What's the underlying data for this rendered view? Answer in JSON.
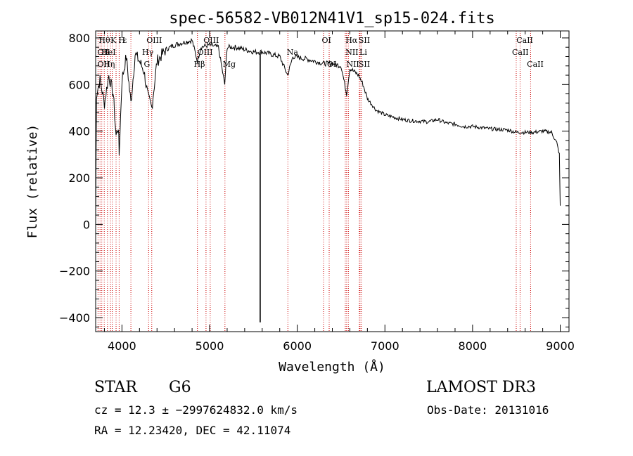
{
  "chart_data": {
    "type": "line",
    "title": "spec-56582-VB012N41V1_sp15-024.fits",
    "xlabel": "Wavelength (Å)",
    "ylabel": "Flux (relative)",
    "xlim": [
      3700,
      9100
    ],
    "ylim": [
      -460,
      830
    ],
    "x_ticks": [
      4000,
      5000,
      6000,
      7000,
      8000,
      9000
    ],
    "x_tick_labels": [
      "4000",
      "5000",
      "6000",
      "7000",
      "8000",
      "9000"
    ],
    "y_ticks": [
      -400,
      -200,
      0,
      200,
      400,
      600,
      800
    ],
    "y_tick_labels": [
      "−400",
      "−200",
      "0",
      "200",
      "400",
      "600",
      "800"
    ],
    "line_color": "#000000",
    "marker_color": "#cc0000",
    "continuum": [
      [
        3700,
        0
      ],
      [
        3710,
        560
      ],
      [
        3750,
        620
      ],
      [
        3800,
        520
      ],
      [
        3850,
        640
      ],
      [
        3900,
        560
      ],
      [
        3933,
        380
      ],
      [
        3960,
        420
      ],
      [
        3968,
        300
      ],
      [
        4000,
        620
      ],
      [
        4050,
        720
      ],
      [
        4102,
        520
      ],
      [
        4150,
        730
      ],
      [
        4200,
        700
      ],
      [
        4250,
        660
      ],
      [
        4300,
        540
      ],
      [
        4340,
        500
      ],
      [
        4400,
        700
      ],
      [
        4500,
        750
      ],
      [
        4600,
        770
      ],
      [
        4700,
        780
      ],
      [
        4800,
        790
      ],
      [
        4861,
        700
      ],
      [
        4900,
        760
      ],
      [
        5000,
        770
      ],
      [
        5100,
        760
      ],
      [
        5172,
        600
      ],
      [
        5200,
        760
      ],
      [
        5300,
        760
      ],
      [
        5400,
        750
      ],
      [
        5500,
        740
      ],
      [
        5580,
        740
      ],
      [
        5600,
        740
      ],
      [
        5700,
        730
      ],
      [
        5800,
        720
      ],
      [
        5890,
        640
      ],
      [
        5950,
        720
      ],
      [
        6100,
        710
      ],
      [
        6200,
        700
      ],
      [
        6300,
        690
      ],
      [
        6400,
        690
      ],
      [
        6500,
        680
      ],
      [
        6563,
        560
      ],
      [
        6600,
        670
      ],
      [
        6700,
        640
      ],
      [
        6750,
        600
      ],
      [
        6800,
        540
      ],
      [
        6900,
        490
      ],
      [
        7000,
        470
      ],
      [
        7100,
        460
      ],
      [
        7200,
        450
      ],
      [
        7300,
        445
      ],
      [
        7500,
        440
      ],
      [
        7600,
        450
      ],
      [
        7700,
        435
      ],
      [
        7800,
        430
      ],
      [
        7900,
        420
      ],
      [
        8000,
        420
      ],
      [
        8200,
        410
      ],
      [
        8400,
        405
      ],
      [
        8500,
        395
      ],
      [
        8600,
        395
      ],
      [
        8700,
        395
      ],
      [
        8800,
        400
      ],
      [
        8900,
        395
      ],
      [
        8960,
        350
      ],
      [
        8990,
        300
      ],
      [
        9000,
        80
      ]
    ],
    "spikes": [
      {
        "x": 5577,
        "y": -420
      }
    ],
    "lines": [
      {
        "x": 3727,
        "label": "OII",
        "row": 2
      },
      {
        "x": 3750,
        "label": "",
        "row": 0
      },
      {
        "x": 3770,
        "label": "",
        "row": 0
      },
      {
        "x": 3798,
        "label": "",
        "row": 0
      },
      {
        "x": 3835,
        "label": "Hη",
        "row": 0
      },
      {
        "x": 3869,
        "label": "",
        "row": 0
      },
      {
        "x": 3889,
        "label": "",
        "row": 0
      },
      {
        "x": 3933,
        "label": "K",
        "row": 0
      },
      {
        "x": 3968,
        "label": "",
        "row": 0
      },
      {
        "x": 4102,
        "label": "Hδ",
        "row": 0
      },
      {
        "x": 4304,
        "label": "",
        "row": 0
      },
      {
        "x": 4340,
        "label": "OIII",
        "row": 0
      },
      {
        "x": 4861,
        "label": "Hβ",
        "row": 2
      },
      {
        "x": 4959,
        "label": "OIII",
        "row": 0
      },
      {
        "x": 5007,
        "label": "",
        "row": 0
      },
      {
        "x": 5175,
        "label": "Mg",
        "row": 2
      },
      {
        "x": 5893,
        "label": "Na",
        "row": 1
      },
      {
        "x": 6300,
        "label": "OI",
        "row": 0
      },
      {
        "x": 6364,
        "label": "",
        "row": 0
      },
      {
        "x": 6548,
        "label": "",
        "row": 0
      },
      {
        "x": 6563,
        "label": "Hα",
        "row": 0
      },
      {
        "x": 6583,
        "label": "",
        "row": 0
      },
      {
        "x": 6708,
        "label": "",
        "row": 0
      },
      {
        "x": 6716,
        "label": "SII",
        "row": 0
      },
      {
        "x": 6731,
        "label": "",
        "row": 0
      },
      {
        "x": 8498,
        "label": "",
        "row": 0
      },
      {
        "x": 8542,
        "label": "CaII",
        "row": 0
      },
      {
        "x": 8662,
        "label": "CaII",
        "row": 2
      }
    ],
    "line_labels": [
      {
        "x": 3735,
        "row": 0,
        "text": "Hθ"
      },
      {
        "x": 3720,
        "row": 1,
        "text": "OII"
      },
      {
        "x": 3720,
        "row": 2,
        "text": "OII"
      },
      {
        "x": 3765,
        "row": 1,
        "text": "HeI"
      },
      {
        "x": 3790,
        "row": 2,
        "text": "Hη"
      },
      {
        "x": 3870,
        "row": 0,
        "text": "K"
      },
      {
        "x": 3960,
        "row": 0,
        "text": "H"
      },
      {
        "x": 4010,
        "row": 0,
        "text": "ε"
      },
      {
        "x": 4280,
        "row": 0,
        "text": "OIII"
      },
      {
        "x": 4230,
        "row": 1,
        "text": "Hγ"
      },
      {
        "x": 4250,
        "row": 2,
        "text": "G"
      },
      {
        "x": 4930,
        "row": 0,
        "text": "OIII"
      },
      {
        "x": 4860,
        "row": 1,
        "text": "OIII"
      },
      {
        "x": 4820,
        "row": 2,
        "text": "Hβ"
      },
      {
        "x": 5150,
        "row": 2,
        "text": "Mg"
      },
      {
        "x": 5880,
        "row": 1,
        "text": "Na"
      },
      {
        "x": 6280,
        "row": 0,
        "text": "OI"
      },
      {
        "x": 6340,
        "row": 2,
        "text": "OI"
      },
      {
        "x": 6550,
        "row": 0,
        "text": "Hα"
      },
      {
        "x": 6550,
        "row": 1,
        "text": "NII"
      },
      {
        "x": 6560,
        "row": 2,
        "text": "NII"
      },
      {
        "x": 6700,
        "row": 0,
        "text": "SII"
      },
      {
        "x": 6710,
        "row": 1,
        "text": "Li"
      },
      {
        "x": 6700,
        "row": 2,
        "text": "SII"
      },
      {
        "x": 8500,
        "row": 0,
        "text": "CaII"
      },
      {
        "x": 8450,
        "row": 1,
        "text": "CaII"
      },
      {
        "x": 8620,
        "row": 2,
        "text": "CaII"
      }
    ]
  },
  "info": {
    "object_class": "STAR",
    "subclass": "G6",
    "survey": "LAMOST DR3",
    "cz_line": "cz = 12.3 ± −2997624832.0 km/s",
    "obs_date": "Obs-Date: 20131016",
    "radec_line": "RA =  12.23420, DEC =  42.11074"
  }
}
